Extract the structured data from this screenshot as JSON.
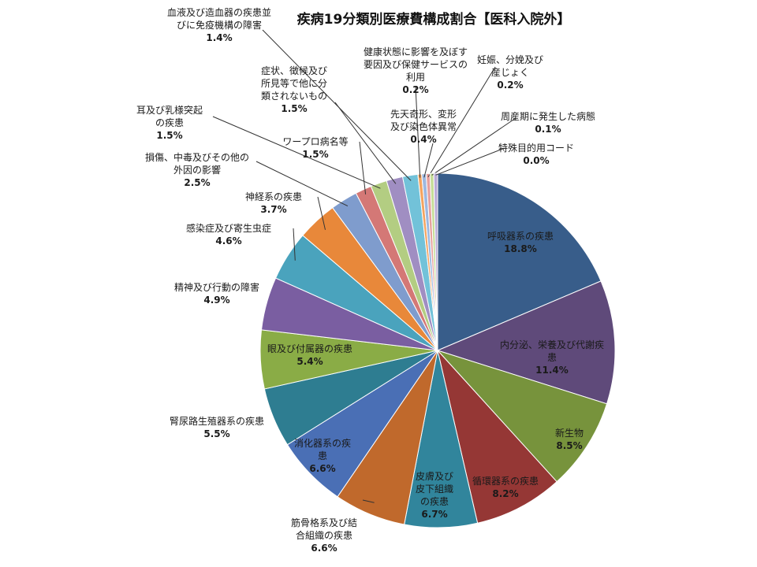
{
  "chart_data": {
    "type": "pie",
    "title": "疾病19分類別医療費構成割合【医科入院外】",
    "slices": [
      {
        "label": "呼吸器系の疾患",
        "value": 18.8,
        "pct_text": "18.8%",
        "color": "#385d8a"
      },
      {
        "label": "内分泌、栄養及び代謝疾患",
        "value": 11.4,
        "pct_text": "11.4%",
        "color": "#5f4a7a"
      },
      {
        "label": "新生物",
        "value": 8.5,
        "pct_text": "8.5%",
        "color": "#77933c"
      },
      {
        "label": "循環器系の疾患",
        "value": 8.2,
        "pct_text": "8.2%",
        "color": "#953735"
      },
      {
        "label": "皮膚及び皮下組織の疾患",
        "value": 6.7,
        "pct_text": "6.7%",
        "color": "#31859c"
      },
      {
        "label": "筋骨格系及び結合組織の疾患",
        "value": 6.6,
        "pct_text": "6.6%",
        "color": "#c0692c"
      },
      {
        "label": "消化器系の疾患",
        "value": 6.6,
        "pct_text": "6.6%",
        "color": "#4a6fb5"
      },
      {
        "label": "腎尿路生殖器系の疾患",
        "value": 5.5,
        "pct_text": "5.5%",
        "color": "#2e7d91"
      },
      {
        "label": "眼及び付属器の疾患",
        "value": 5.4,
        "pct_text": "5.4%",
        "color": "#8aac46"
      },
      {
        "label": "精神及び行動の障害",
        "value": 4.9,
        "pct_text": "4.9%",
        "color": "#7a5ea1"
      },
      {
        "label": "感染症及び寄生虫症",
        "value": 4.6,
        "pct_text": "4.6%",
        "color": "#4aa3bd"
      },
      {
        "label": "神経系の疾患",
        "value": 3.7,
        "pct_text": "3.7%",
        "color": "#e8883a"
      },
      {
        "label": "損傷、中毒及びその他の外因の影響",
        "value": 2.5,
        "pct_text": "2.5%",
        "color": "#7f9ccd"
      },
      {
        "label": "ワープロ病名等",
        "value": 1.5,
        "pct_text": "1.5%",
        "color": "#d47876"
      },
      {
        "label": "耳及び乳様突起の疾患",
        "value": 1.5,
        "pct_text": "1.5%",
        "color": "#b3cd82"
      },
      {
        "label": "症状、徴候及び所見等で他に分類されないもの",
        "value": 1.5,
        "pct_text": "1.5%",
        "color": "#a08ec2"
      },
      {
        "label": "血液及び造血器の疾患並びに免疫機構の障害",
        "value": 1.4,
        "pct_text": "1.4%",
        "color": "#72c2d9"
      },
      {
        "label": "健康状態に影響を及ぼす要因及び保健サービスの利用",
        "value": 0.2,
        "pct_text": "0.2%",
        "color": "#f4a460"
      },
      {
        "label": "先天奇形、変形及び染色体異常",
        "value": 0.4,
        "pct_text": "0.4%",
        "color": "#9db8e0"
      },
      {
        "label": "妊娠、分娩及び産じょく",
        "value": 0.2,
        "pct_text": "0.2%",
        "color": "#e6a19e"
      },
      {
        "label": "周産期に発生した病態",
        "value": 0.1,
        "pct_text": "0.1%",
        "color": "#c6dd98"
      },
      {
        "label": "特殊目的用コード",
        "value": 0.0,
        "pct_text": "0.0%",
        "color": "#b9a9d6"
      }
    ]
  }
}
